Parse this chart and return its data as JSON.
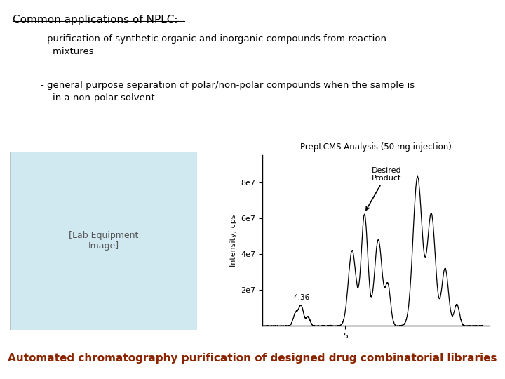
{
  "bg_color": "#ffffff",
  "title_text": "Common applications of NPLC:",
  "title_color": "#000000",
  "bullet1": "- purification of synthetic organic and inorganic compounds from reaction\n    mixtures",
  "bullet2": "- general purpose separation of polar/non-polar compounds when the sample is\n    in a non-polar solvent",
  "text_color": "#000000",
  "bottom_text": "Automated chromatography purification of designed drug combinatorial libraries",
  "bottom_color": "#8B2500",
  "chart_title": "PrepLCMS Analysis (50 mg injection)",
  "chart_ylabel": "Intensity, cps",
  "chart_annotation_label": "4.36",
  "chart_annotation2": "Desired\nProduct",
  "ytick_labels": [
    "2e7",
    "4e7",
    "6e7",
    "8e7"
  ],
  "ytick_values": [
    20000000,
    40000000,
    60000000,
    80000000
  ],
  "image_placeholder_color": "#d0e8f0",
  "font_family": "DejaVu Sans"
}
